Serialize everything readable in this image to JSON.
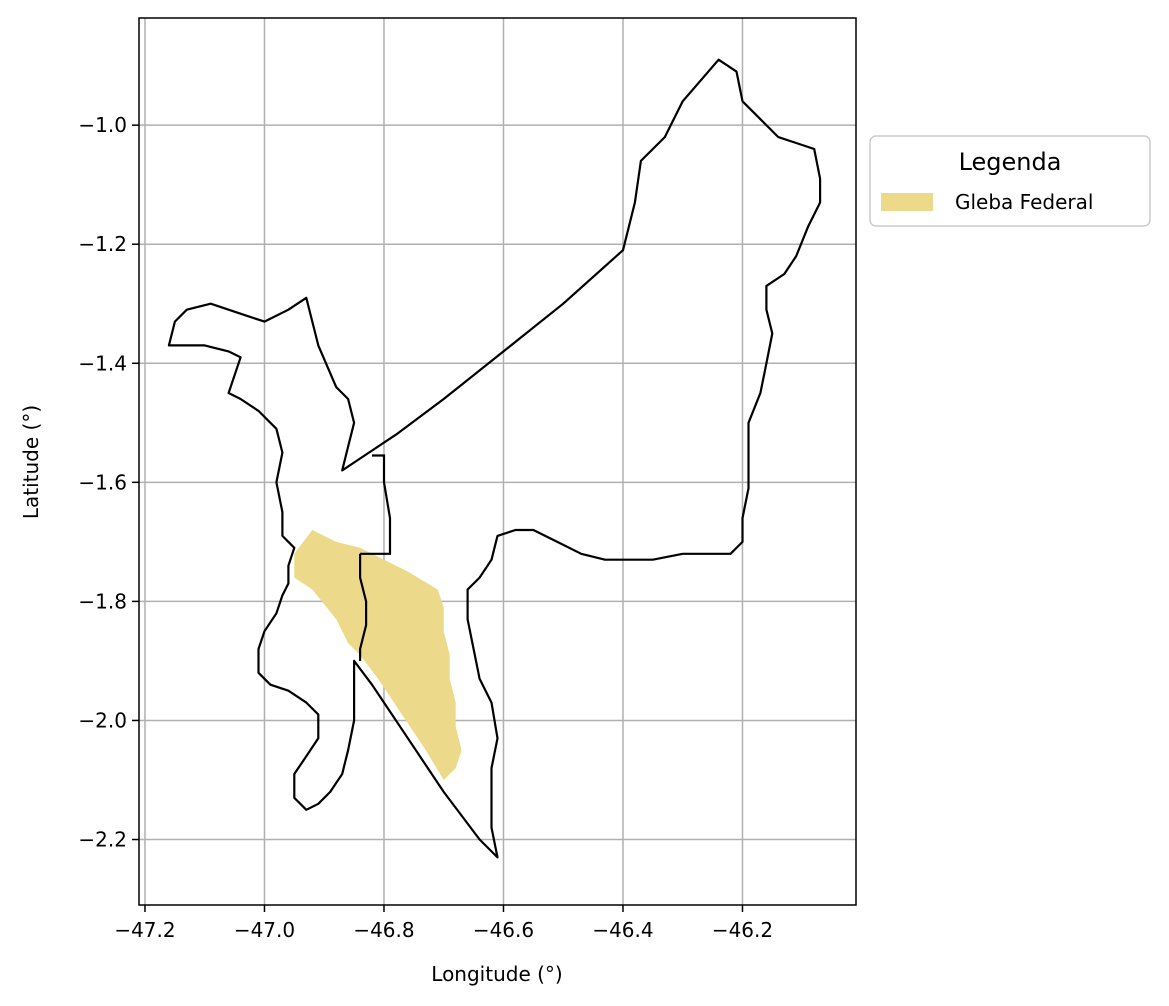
{
  "map": {
    "xlabel": "Longitude (°)",
    "ylabel": "Latitude (°)",
    "xlim": [
      -47.21,
      -46.01
    ],
    "ylim": [
      -2.31,
      -0.82
    ],
    "xticks": [
      -47.2,
      -47.0,
      -46.8,
      -46.6,
      -46.4,
      -46.2
    ],
    "yticks": [
      -1.0,
      -1.2,
      -1.4,
      -1.6,
      -1.8,
      -2.0,
      -2.2
    ],
    "xtick_labels": [
      "−47.2",
      "−47.0",
      "−46.8",
      "−46.6",
      "−46.4",
      "−46.2"
    ],
    "ytick_labels": [
      "−1.0",
      "−1.2",
      "−1.4",
      "−1.6",
      "−1.8",
      "−2.0",
      "−2.2"
    ],
    "grid": true,
    "legend": {
      "title": "Legenda",
      "placement": "outside-upper-right",
      "entries": [
        {
          "label": "Gleba Federal",
          "color": "#ecd98a"
        }
      ]
    },
    "colors": {
      "boundary": "#000000",
      "gleba_fill": "#ecd98a",
      "grid": "#b0b0b0"
    },
    "boundary_lonlat": [
      [
        -47.16,
        -1.37
      ],
      [
        -47.15,
        -1.33
      ],
      [
        -47.13,
        -1.31
      ],
      [
        -47.09,
        -1.3
      ],
      [
        -47.06,
        -1.31
      ],
      [
        -47.03,
        -1.32
      ],
      [
        -47.0,
        -1.33
      ],
      [
        -46.96,
        -1.31
      ],
      [
        -46.93,
        -1.29
      ],
      [
        -46.92,
        -1.33
      ],
      [
        -46.91,
        -1.37
      ],
      [
        -46.88,
        -1.44
      ],
      [
        -46.86,
        -1.46
      ],
      [
        -46.85,
        -1.5
      ],
      [
        -46.86,
        -1.54
      ],
      [
        -46.87,
        -1.58
      ],
      [
        -46.84,
        -1.56
      ],
      [
        -46.78,
        -1.52
      ],
      [
        -46.7,
        -1.46
      ],
      [
        -46.6,
        -1.38
      ],
      [
        -46.5,
        -1.3
      ],
      [
        -46.4,
        -1.21
      ],
      [
        -46.38,
        -1.13
      ],
      [
        -46.37,
        -1.06
      ],
      [
        -46.33,
        -1.02
      ],
      [
        -46.3,
        -0.96
      ],
      [
        -46.24,
        -0.89
      ],
      [
        -46.21,
        -0.91
      ],
      [
        -46.2,
        -0.96
      ],
      [
        -46.17,
        -0.99
      ],
      [
        -46.14,
        -1.02
      ],
      [
        -46.11,
        -1.03
      ],
      [
        -46.08,
        -1.04
      ],
      [
        -46.07,
        -1.09
      ],
      [
        -46.07,
        -1.13
      ],
      [
        -46.09,
        -1.17
      ],
      [
        -46.11,
        -1.22
      ],
      [
        -46.13,
        -1.25
      ],
      [
        -46.16,
        -1.27
      ],
      [
        -46.16,
        -1.31
      ],
      [
        -46.15,
        -1.35
      ],
      [
        -46.16,
        -1.4
      ],
      [
        -46.17,
        -1.45
      ],
      [
        -46.19,
        -1.5
      ],
      [
        -46.19,
        -1.55
      ],
      [
        -46.19,
        -1.61
      ],
      [
        -46.2,
        -1.66
      ],
      [
        -46.2,
        -1.7
      ],
      [
        -46.22,
        -1.72
      ],
      [
        -46.26,
        -1.72
      ],
      [
        -46.3,
        -1.72
      ],
      [
        -46.35,
        -1.73
      ],
      [
        -46.4,
        -1.73
      ],
      [
        -46.43,
        -1.73
      ],
      [
        -46.47,
        -1.72
      ],
      [
        -46.51,
        -1.7
      ],
      [
        -46.55,
        -1.68
      ],
      [
        -46.58,
        -1.68
      ],
      [
        -46.61,
        -1.69
      ],
      [
        -46.62,
        -1.73
      ],
      [
        -46.64,
        -1.76
      ],
      [
        -46.66,
        -1.78
      ],
      [
        -46.66,
        -1.83
      ],
      [
        -46.65,
        -1.88
      ],
      [
        -46.64,
        -1.93
      ],
      [
        -46.62,
        -1.97
      ],
      [
        -46.61,
        -2.03
      ],
      [
        -46.62,
        -2.08
      ],
      [
        -46.62,
        -2.13
      ],
      [
        -46.62,
        -2.18
      ],
      [
        -46.61,
        -2.23
      ],
      [
        -46.64,
        -2.2
      ],
      [
        -46.7,
        -2.12
      ],
      [
        -46.76,
        -2.03
      ],
      [
        -46.82,
        -1.94
      ],
      [
        -46.85,
        -1.9
      ],
      [
        -46.85,
        -1.95
      ],
      [
        -46.85,
        -2.0
      ],
      [
        -46.86,
        -2.05
      ],
      [
        -46.87,
        -2.09
      ],
      [
        -46.89,
        -2.12
      ],
      [
        -46.91,
        -2.14
      ],
      [
        -46.93,
        -2.15
      ],
      [
        -46.95,
        -2.13
      ],
      [
        -46.95,
        -2.09
      ],
      [
        -46.93,
        -2.06
      ],
      [
        -46.91,
        -2.03
      ],
      [
        -46.91,
        -1.99
      ],
      [
        -46.93,
        -1.97
      ],
      [
        -46.96,
        -1.95
      ],
      [
        -46.99,
        -1.94
      ],
      [
        -47.01,
        -1.92
      ],
      [
        -47.01,
        -1.88
      ],
      [
        -47.0,
        -1.85
      ],
      [
        -46.98,
        -1.82
      ],
      [
        -46.97,
        -1.79
      ],
      [
        -46.96,
        -1.77
      ],
      [
        -46.96,
        -1.74
      ],
      [
        -46.95,
        -1.71
      ],
      [
        -46.97,
        -1.69
      ],
      [
        -46.97,
        -1.65
      ],
      [
        -46.98,
        -1.6
      ],
      [
        -46.97,
        -1.55
      ],
      [
        -46.98,
        -1.51
      ],
      [
        -47.01,
        -1.48
      ],
      [
        -47.04,
        -1.46
      ],
      [
        -47.06,
        -1.45
      ],
      [
        -47.05,
        -1.42
      ],
      [
        -47.04,
        -1.39
      ],
      [
        -47.06,
        -1.38
      ],
      [
        -47.1,
        -1.37
      ]
    ],
    "inner_boundary_lonlat": [
      [
        -46.84,
        -1.72
      ],
      [
        -46.84,
        -1.76
      ],
      [
        -46.83,
        -1.8
      ],
      [
        -46.83,
        -1.84
      ],
      [
        -46.84,
        -1.88
      ],
      [
        -46.84,
        -1.9
      ]
    ],
    "inner_step_lonlat": [
      [
        -46.84,
        -1.72
      ],
      [
        -46.79,
        -1.72
      ],
      [
        -46.79,
        -1.66
      ],
      [
        -46.8,
        -1.6
      ],
      [
        -46.8,
        -1.555
      ],
      [
        -46.82,
        -1.555
      ]
    ],
    "gleba_lonlat": [
      [
        -46.92,
        -1.68
      ],
      [
        -46.88,
        -1.7
      ],
      [
        -46.84,
        -1.71
      ],
      [
        -46.8,
        -1.73
      ],
      [
        -46.76,
        -1.75
      ],
      [
        -46.71,
        -1.78
      ],
      [
        -46.7,
        -1.81
      ],
      [
        -46.7,
        -1.85
      ],
      [
        -46.69,
        -1.89
      ],
      [
        -46.69,
        -1.93
      ],
      [
        -46.68,
        -1.97
      ],
      [
        -46.68,
        -2.01
      ],
      [
        -46.67,
        -2.05
      ],
      [
        -46.68,
        -2.08
      ],
      [
        -46.7,
        -2.1
      ],
      [
        -46.73,
        -2.05
      ],
      [
        -46.77,
        -1.99
      ],
      [
        -46.81,
        -1.93
      ],
      [
        -46.84,
        -1.89
      ],
      [
        -46.86,
        -1.87
      ],
      [
        -46.88,
        -1.83
      ],
      [
        -46.92,
        -1.78
      ],
      [
        -46.95,
        -1.76
      ],
      [
        -46.95,
        -1.72
      ]
    ]
  }
}
